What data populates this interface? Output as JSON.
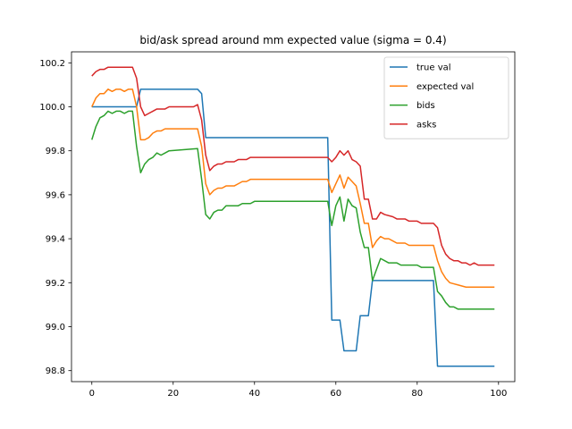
{
  "chart_data": {
    "type": "line",
    "title": "bid/ask spread around mm expected value (sigma = 0.4)",
    "xlabel": "",
    "ylabel": "",
    "xlim": [
      -5,
      104
    ],
    "ylim": [
      98.75,
      100.25
    ],
    "xticks": [
      0,
      20,
      40,
      60,
      80,
      100
    ],
    "yticks": [
      98.8,
      99.0,
      99.2,
      99.4,
      99.6,
      99.8,
      100.0,
      100.2
    ],
    "xtick_labels": [
      "0",
      "20",
      "40",
      "60",
      "80",
      "100"
    ],
    "ytick_labels": [
      "98.8",
      "99.0",
      "99.2",
      "99.4",
      "99.6",
      "99.8",
      "100.0",
      "100.2"
    ],
    "grid": false,
    "legend_position": "top-right",
    "series": [
      {
        "name": "true val",
        "color": "#1f77b4",
        "points": [
          [
            0,
            100.0
          ],
          [
            11,
            100.0
          ],
          [
            12,
            100.08
          ],
          [
            26,
            100.08
          ],
          [
            27,
            100.06
          ],
          [
            28,
            99.86
          ],
          [
            58,
            99.86
          ],
          [
            59,
            99.03
          ],
          [
            61,
            99.03
          ],
          [
            62,
            98.89
          ],
          [
            65,
            98.89
          ],
          [
            66,
            99.05
          ],
          [
            68,
            99.05
          ],
          [
            69,
            99.21
          ],
          [
            84,
            99.21
          ],
          [
            85,
            98.82
          ],
          [
            99,
            98.82
          ]
        ]
      },
      {
        "name": "expected val",
        "color": "#ff7f0e",
        "points": [
          [
            0,
            100.0
          ],
          [
            1,
            100.04
          ],
          [
            2,
            100.06
          ],
          [
            3,
            100.06
          ],
          [
            4,
            100.08
          ],
          [
            5,
            100.07
          ],
          [
            6,
            100.08
          ],
          [
            7,
            100.08
          ],
          [
            8,
            100.07
          ],
          [
            9,
            100.08
          ],
          [
            10,
            100.08
          ],
          [
            11,
            100.0
          ],
          [
            12,
            99.85
          ],
          [
            13,
            99.85
          ],
          [
            14,
            99.86
          ],
          [
            15,
            99.88
          ],
          [
            16,
            99.89
          ],
          [
            17,
            99.89
          ],
          [
            18,
            99.9
          ],
          [
            26,
            99.9
          ],
          [
            27,
            99.82
          ],
          [
            28,
            99.65
          ],
          [
            29,
            99.6
          ],
          [
            30,
            99.62
          ],
          [
            31,
            99.63
          ],
          [
            32,
            99.63
          ],
          [
            33,
            99.64
          ],
          [
            35,
            99.64
          ],
          [
            36,
            99.65
          ],
          [
            37,
            99.66
          ],
          [
            38,
            99.66
          ],
          [
            39,
            99.67
          ],
          [
            58,
            99.67
          ],
          [
            59,
            99.61
          ],
          [
            60,
            99.65
          ],
          [
            61,
            99.69
          ],
          [
            62,
            99.63
          ],
          [
            63,
            99.68
          ],
          [
            64,
            99.66
          ],
          [
            65,
            99.64
          ],
          [
            66,
            99.56
          ],
          [
            67,
            99.47
          ],
          [
            68,
            99.47
          ],
          [
            69,
            99.36
          ],
          [
            70,
            99.39
          ],
          [
            71,
            99.41
          ],
          [
            72,
            99.4
          ],
          [
            73,
            99.4
          ],
          [
            74,
            99.39
          ],
          [
            75,
            99.38
          ],
          [
            77,
            99.38
          ],
          [
            78,
            99.37
          ],
          [
            84,
            99.37
          ],
          [
            85,
            99.3
          ],
          [
            86,
            99.25
          ],
          [
            87,
            99.22
          ],
          [
            88,
            99.2
          ],
          [
            90,
            99.19
          ],
          [
            92,
            99.18
          ],
          [
            99,
            99.18
          ]
        ]
      },
      {
        "name": "bids",
        "color": "#2ca02c",
        "points": [
          [
            0,
            99.85
          ],
          [
            1,
            99.91
          ],
          [
            2,
            99.95
          ],
          [
            3,
            99.96
          ],
          [
            4,
            99.98
          ],
          [
            5,
            99.97
          ],
          [
            6,
            99.98
          ],
          [
            7,
            99.98
          ],
          [
            8,
            99.97
          ],
          [
            9,
            99.98
          ],
          [
            10,
            99.98
          ],
          [
            11,
            99.82
          ],
          [
            12,
            99.7
          ],
          [
            13,
            99.74
          ],
          [
            14,
            99.76
          ],
          [
            15,
            99.77
          ],
          [
            16,
            99.79
          ],
          [
            17,
            99.78
          ],
          [
            18,
            99.79
          ],
          [
            19,
            99.8
          ],
          [
            26,
            99.81
          ],
          [
            27,
            99.67
          ],
          [
            28,
            99.51
          ],
          [
            29,
            99.49
          ],
          [
            30,
            99.52
          ],
          [
            31,
            99.53
          ],
          [
            32,
            99.53
          ],
          [
            33,
            99.55
          ],
          [
            36,
            99.55
          ],
          [
            37,
            99.56
          ],
          [
            39,
            99.56
          ],
          [
            40,
            99.57
          ],
          [
            58,
            99.57
          ],
          [
            59,
            99.46
          ],
          [
            60,
            99.55
          ],
          [
            61,
            99.59
          ],
          [
            62,
            99.48
          ],
          [
            63,
            99.58
          ],
          [
            64,
            99.55
          ],
          [
            65,
            99.54
          ],
          [
            66,
            99.43
          ],
          [
            67,
            99.36
          ],
          [
            68,
            99.36
          ],
          [
            69,
            99.21
          ],
          [
            70,
            99.26
          ],
          [
            71,
            99.31
          ],
          [
            72,
            99.3
          ],
          [
            73,
            99.29
          ],
          [
            75,
            99.29
          ],
          [
            76,
            99.28
          ],
          [
            80,
            99.28
          ],
          [
            81,
            99.27
          ],
          [
            84,
            99.27
          ],
          [
            85,
            99.16
          ],
          [
            86,
            99.14
          ],
          [
            87,
            99.11
          ],
          [
            88,
            99.09
          ],
          [
            89,
            99.09
          ],
          [
            90,
            99.08
          ],
          [
            99,
            99.08
          ]
        ]
      },
      {
        "name": "asks",
        "color": "#d62728",
        "points": [
          [
            0,
            100.14
          ],
          [
            1,
            100.16
          ],
          [
            2,
            100.17
          ],
          [
            3,
            100.17
          ],
          [
            4,
            100.18
          ],
          [
            10,
            100.18
          ],
          [
            11,
            100.13
          ],
          [
            12,
            100.0
          ],
          [
            13,
            99.96
          ],
          [
            14,
            99.97
          ],
          [
            15,
            99.98
          ],
          [
            16,
            99.99
          ],
          [
            18,
            99.99
          ],
          [
            19,
            100.0
          ],
          [
            25,
            100.0
          ],
          [
            26,
            100.01
          ],
          [
            27,
            99.94
          ],
          [
            28,
            99.78
          ],
          [
            29,
            99.71
          ],
          [
            30,
            99.73
          ],
          [
            31,
            99.74
          ],
          [
            32,
            99.74
          ],
          [
            33,
            99.75
          ],
          [
            35,
            99.75
          ],
          [
            36,
            99.76
          ],
          [
            38,
            99.76
          ],
          [
            39,
            99.77
          ],
          [
            58,
            99.77
          ],
          [
            59,
            99.75
          ],
          [
            60,
            99.77
          ],
          [
            61,
            99.8
          ],
          [
            62,
            99.78
          ],
          [
            63,
            99.8
          ],
          [
            64,
            99.76
          ],
          [
            65,
            99.75
          ],
          [
            66,
            99.73
          ],
          [
            67,
            99.58
          ],
          [
            68,
            99.58
          ],
          [
            69,
            99.49
          ],
          [
            70,
            99.49
          ],
          [
            71,
            99.52
          ],
          [
            72,
            99.51
          ],
          [
            74,
            99.5
          ],
          [
            75,
            99.49
          ],
          [
            77,
            99.49
          ],
          [
            78,
            99.48
          ],
          [
            80,
            99.48
          ],
          [
            81,
            99.47
          ],
          [
            84,
            99.47
          ],
          [
            85,
            99.45
          ],
          [
            86,
            99.37
          ],
          [
            87,
            99.33
          ],
          [
            88,
            99.31
          ],
          [
            89,
            99.3
          ],
          [
            90,
            99.3
          ],
          [
            91,
            99.29
          ],
          [
            92,
            99.29
          ],
          [
            93,
            99.28
          ],
          [
            94,
            99.29
          ],
          [
            95,
            99.28
          ],
          [
            99,
            99.28
          ]
        ]
      }
    ]
  }
}
